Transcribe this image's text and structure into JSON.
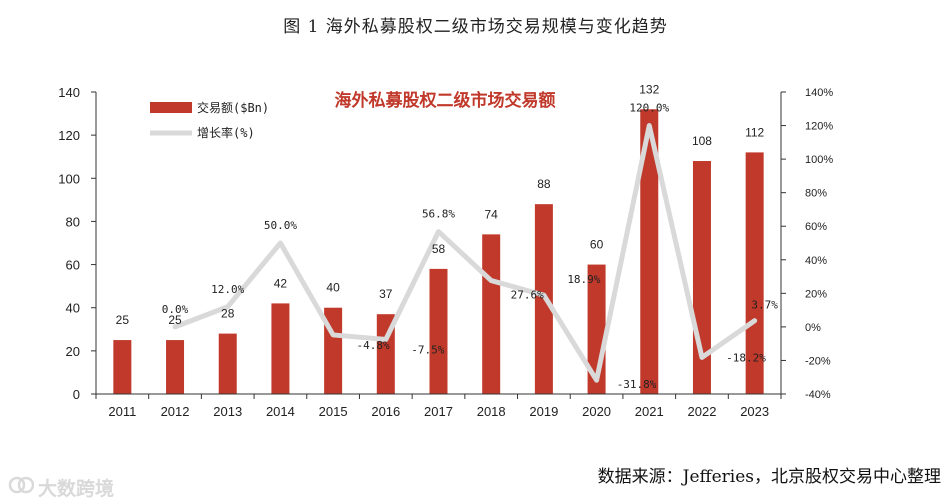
{
  "figure_title": "图 1 海外私募股权二级市场交易规模与变化趋势",
  "source": "数据来源：Jefferies，北京股权交易中心整理",
  "watermark": "大数跨境",
  "colors": {
    "bar": "#c0392b",
    "line": "#d9d9d9",
    "axis": "#333333",
    "title": "#c0392b"
  },
  "chart_data": {
    "type": "bar",
    "title": "海外私募股权二级市场交易额",
    "categories": [
      "2011",
      "2012",
      "2013",
      "2014",
      "2015",
      "2016",
      "2017",
      "2018",
      "2019",
      "2020",
      "2021",
      "2022",
      "2023"
    ],
    "series": [
      {
        "name": "交易额($Bn)",
        "type": "bar",
        "axis": "left",
        "values": [
          25,
          25,
          28,
          42,
          40,
          37,
          58,
          74,
          88,
          60,
          132,
          108,
          112
        ]
      },
      {
        "name": "增长率(%)",
        "type": "line",
        "axis": "right",
        "values": [
          null,
          0.0,
          12.0,
          50.0,
          -4.8,
          -7.5,
          56.8,
          27.6,
          18.9,
          -31.8,
          120.0,
          -18.2,
          3.7
        ]
      }
    ],
    "value_labels": [
      "25",
      "25",
      "28",
      "42",
      "40",
      "37",
      "58",
      "74",
      "88",
      "60",
      "132",
      "108",
      "112"
    ],
    "pct_labels": [
      "",
      "0.0%",
      "12.0%",
      "50.0%",
      "-4.8%",
      "-7.5%",
      "56.8%",
      "27.6%",
      "18.9%",
      "-31.8%",
      "120.0%",
      "-18.2%",
      "3.7%"
    ],
    "y_left": {
      "lim": [
        0,
        140
      ],
      "ticks": [
        "0",
        "20",
        "40",
        "60",
        "80",
        "100",
        "120",
        "140"
      ]
    },
    "y_right": {
      "lim": [
        -40,
        140
      ],
      "ticks": [
        "-40%",
        "-20%",
        "0%",
        "20%",
        "40%",
        "60%",
        "80%",
        "100%",
        "120%",
        "140%"
      ]
    },
    "legend": [
      {
        "label": "交易额($Bn)",
        "kind": "bar"
      },
      {
        "label": "增长率(%)",
        "kind": "line"
      }
    ],
    "grid": false
  }
}
